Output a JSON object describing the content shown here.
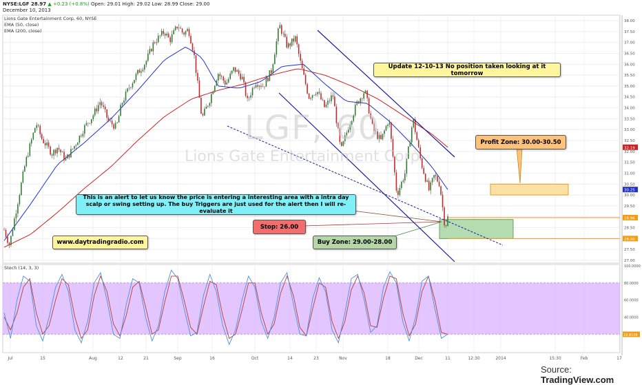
{
  "header": {
    "symbol_line": "NYSE:LGF 28.97",
    "change": "+0.23 (+0.8%)",
    "ohlc": "Open: 29.01  High: 29.02  Low: 28.99  Close: 29.00",
    "date": "December 10, 2013"
  },
  "legend": {
    "title": "Lions Gate Entertainment Corp, 60, NYSE",
    "ema50": "EMA (50, close)",
    "ema200": "EMA (200, close)",
    "stoch": "Stoch (14, 3, 3)"
  },
  "watermark": {
    "ticker": "LGF, 60",
    "name": "Lions Gate Entertainment Corp"
  },
  "annotations": {
    "update": "Update 12-10-13 No position taken looking at it tomorrow",
    "profit": "Profit Zone: 30.00-30.50",
    "alert": "This is an alert to let us know the price is entering a interesting area with a intra day scalp or swing setting up. The buy Triggers are just used for the alert then I will re-evaluate it",
    "stop": "Stop: 26.00",
    "buy": "Buy Zone: 29.00-28.00",
    "website": "www.daytradingradio.com"
  },
  "source": {
    "prefix": "Source: ",
    "brand": "TradingView.com"
  },
  "colors": {
    "price_up": "#2e7d32",
    "price_down": "#c62828",
    "ema50": "#2233cc",
    "ema200": "#cc2222",
    "trendline": "#1a1aa0",
    "stoch_band": "#d9b3ff",
    "stoch_k": "#4a90e2",
    "stoch_d": "#c0392b",
    "profit_box": "#fde0a3",
    "buy_box": "#b5dbb0",
    "level_line": "#f39c12"
  },
  "chart_data": [
    {
      "type": "candlestick",
      "symbol": "LGF",
      "interval": "60",
      "price_axis": {
        "min": 27.0,
        "max": 38.0,
        "ticks": [
          "38.00",
          "37.50",
          "37.00",
          "36.50",
          "36.00",
          "35.50",
          "35.00",
          "34.50",
          "34.00",
          "33.50",
          "33.00",
          "32.50",
          "32.00",
          "31.50",
          "31.00",
          "30.50",
          "30.00",
          "29.50",
          "29.00",
          "28.50",
          "28.00",
          "27.50",
          "27.00"
        ]
      },
      "price_labels": [
        {
          "value": 32.19,
          "text": "32.19",
          "color": "#cc2222"
        },
        {
          "value": 30.25,
          "text": "30.25",
          "color": "#2233cc"
        },
        {
          "value": 28.96,
          "text": "28.96",
          "color": "#f39c12"
        },
        {
          "value": 28.0,
          "text": "28.00",
          "color": "#f39c12"
        }
      ],
      "time_ticks": [
        "Jul",
        "15",
        "Aug",
        "12",
        "21",
        "Sep",
        "16",
        "Oct",
        "14",
        "23",
        "Nov",
        "18",
        "Dec",
        "11",
        "12:30",
        "2014",
        "15:30",
        "Feb",
        "17"
      ],
      "price_path": [
        {
          "t": 0,
          "p": 28.4
        },
        {
          "t": 0.01,
          "p": 27.7
        },
        {
          "t": 0.02,
          "p": 29.0
        },
        {
          "t": 0.04,
          "p": 31.5
        },
        {
          "t": 0.06,
          "p": 33.3
        },
        {
          "t": 0.07,
          "p": 32.6
        },
        {
          "t": 0.09,
          "p": 31.9
        },
        {
          "t": 0.1,
          "p": 32.2
        },
        {
          "t": 0.115,
          "p": 31.6
        },
        {
          "t": 0.135,
          "p": 32.4
        },
        {
          "t": 0.15,
          "p": 33.1
        },
        {
          "t": 0.165,
          "p": 33.6
        },
        {
          "t": 0.18,
          "p": 34.3
        },
        {
          "t": 0.195,
          "p": 33.4
        },
        {
          "t": 0.21,
          "p": 33.1
        },
        {
          "t": 0.22,
          "p": 34.2
        },
        {
          "t": 0.235,
          "p": 35.0
        },
        {
          "t": 0.25,
          "p": 35.6
        },
        {
          "t": 0.265,
          "p": 36.1
        },
        {
          "t": 0.28,
          "p": 37.0
        },
        {
          "t": 0.3,
          "p": 37.5
        },
        {
          "t": 0.31,
          "p": 37.1
        },
        {
          "t": 0.325,
          "p": 37.8
        },
        {
          "t": 0.335,
          "p": 37.4
        },
        {
          "t": 0.345,
          "p": 37.6
        },
        {
          "t": 0.355,
          "p": 36.5
        },
        {
          "t": 0.37,
          "p": 33.5
        },
        {
          "t": 0.385,
          "p": 34.4
        },
        {
          "t": 0.4,
          "p": 35.6
        },
        {
          "t": 0.415,
          "p": 35.1
        },
        {
          "t": 0.43,
          "p": 35.8
        },
        {
          "t": 0.445,
          "p": 35.4
        },
        {
          "t": 0.455,
          "p": 34.3
        },
        {
          "t": 0.47,
          "p": 35.2
        },
        {
          "t": 0.485,
          "p": 35.0
        },
        {
          "t": 0.5,
          "p": 35.7
        },
        {
          "t": 0.515,
          "p": 37.8
        },
        {
          "t": 0.53,
          "p": 36.8
        },
        {
          "t": 0.545,
          "p": 37.2
        },
        {
          "t": 0.555,
          "p": 36.0
        },
        {
          "t": 0.57,
          "p": 34.5
        },
        {
          "t": 0.585,
          "p": 34.8
        },
        {
          "t": 0.6,
          "p": 34.0
        },
        {
          "t": 0.615,
          "p": 34.6
        },
        {
          "t": 0.63,
          "p": 32.0
        },
        {
          "t": 0.645,
          "p": 33.2
        },
        {
          "t": 0.66,
          "p": 34.2
        },
        {
          "t": 0.675,
          "p": 34.8
        },
        {
          "t": 0.69,
          "p": 33.0
        },
        {
          "t": 0.705,
          "p": 32.5
        },
        {
          "t": 0.72,
          "p": 33.5
        },
        {
          "t": 0.735,
          "p": 30.0
        },
        {
          "t": 0.75,
          "p": 31.0
        },
        {
          "t": 0.765,
          "p": 33.5
        },
        {
          "t": 0.78,
          "p": 31.5
        },
        {
          "t": 0.795,
          "p": 30.2
        },
        {
          "t": 0.805,
          "p": 30.9
        },
        {
          "t": 0.815,
          "p": 30.5
        },
        {
          "t": 0.825,
          "p": 28.5
        },
        {
          "t": 0.83,
          "p": 28.97
        }
      ],
      "ema50_path": [
        {
          "t": 0,
          "p": 27.9
        },
        {
          "t": 0.05,
          "p": 29.6
        },
        {
          "t": 0.1,
          "p": 31.4
        },
        {
          "t": 0.15,
          "p": 32.4
        },
        {
          "t": 0.2,
          "p": 33.5
        },
        {
          "t": 0.25,
          "p": 34.8
        },
        {
          "t": 0.3,
          "p": 36.2
        },
        {
          "t": 0.34,
          "p": 36.8
        },
        {
          "t": 0.37,
          "p": 36.3
        },
        {
          "t": 0.4,
          "p": 35.0
        },
        {
          "t": 0.44,
          "p": 34.9
        },
        {
          "t": 0.48,
          "p": 35.2
        },
        {
          "t": 0.52,
          "p": 35.9
        },
        {
          "t": 0.56,
          "p": 36.0
        },
        {
          "t": 0.6,
          "p": 35.1
        },
        {
          "t": 0.64,
          "p": 34.3
        },
        {
          "t": 0.68,
          "p": 34.2
        },
        {
          "t": 0.72,
          "p": 33.4
        },
        {
          "t": 0.76,
          "p": 32.4
        },
        {
          "t": 0.8,
          "p": 31.3
        },
        {
          "t": 0.83,
          "p": 30.25
        }
      ],
      "ema200_path": [
        {
          "t": 0,
          "p": 27.6
        },
        {
          "t": 0.05,
          "p": 28.2
        },
        {
          "t": 0.1,
          "p": 29.2
        },
        {
          "t": 0.15,
          "p": 30.3
        },
        {
          "t": 0.2,
          "p": 31.3
        },
        {
          "t": 0.25,
          "p": 32.5
        },
        {
          "t": 0.3,
          "p": 33.6
        },
        {
          "t": 0.35,
          "p": 34.4
        },
        {
          "t": 0.4,
          "p": 34.8
        },
        {
          "t": 0.45,
          "p": 35.1
        },
        {
          "t": 0.5,
          "p": 35.5
        },
        {
          "t": 0.55,
          "p": 35.8
        },
        {
          "t": 0.6,
          "p": 35.5
        },
        {
          "t": 0.65,
          "p": 35.0
        },
        {
          "t": 0.7,
          "p": 34.4
        },
        {
          "t": 0.75,
          "p": 33.6
        },
        {
          "t": 0.8,
          "p": 32.8
        },
        {
          "t": 0.83,
          "p": 32.19
        }
      ],
      "zones": [
        {
          "name": "Profit Zone",
          "low": 30.0,
          "high": 30.5
        },
        {
          "name": "Buy Zone",
          "low": 28.0,
          "high": 29.0
        }
      ],
      "levels": [
        28.96,
        28.0
      ]
    },
    {
      "type": "line",
      "title": "Stoch (14, 3, 3)",
      "y_axis": {
        "min": 0,
        "max": 100,
        "ticks": [
          "100.0000",
          "80.0000",
          "60.0000",
          "40.0000",
          "20.0000"
        ]
      },
      "band": [
        20,
        80
      ],
      "last_value": "19.8108",
      "series": [
        {
          "name": "%K",
          "values": [
            45,
            15,
            60,
            88,
            82,
            30,
            12,
            40,
            75,
            90,
            70,
            25,
            10,
            35,
            80,
            92,
            60,
            20,
            15,
            55,
            85,
            80,
            40,
            12,
            30,
            70,
            95,
            85,
            50,
            18,
            22,
            65,
            90,
            70,
            30,
            8,
            25,
            60,
            88,
            75,
            35,
            15,
            40,
            80,
            92,
            55,
            20,
            18,
            62,
            86,
            70,
            25,
            10,
            45,
            85,
            90,
            60,
            22,
            30,
            75,
            93,
            80,
            35,
            12,
            40,
            82,
            88,
            50,
            15,
            20
          ]
        },
        {
          "name": "%D",
          "values": [
            40,
            25,
            45,
            75,
            85,
            45,
            20,
            30,
            60,
            85,
            78,
            40,
            15,
            25,
            65,
            88,
            70,
            32,
            18,
            42,
            75,
            82,
            52,
            20,
            25,
            58,
            88,
            88,
            60,
            28,
            20,
            52,
            82,
            78,
            42,
            15,
            20,
            48,
            80,
            80,
            45,
            20,
            32,
            68,
            88,
            65,
            28,
            18,
            50,
            80,
            75,
            35,
            15,
            35,
            72,
            88,
            68,
            30,
            28,
            62,
            88,
            85,
            45,
            18,
            32,
            70,
            88,
            60,
            22,
            19.81
          ]
        }
      ]
    }
  ]
}
